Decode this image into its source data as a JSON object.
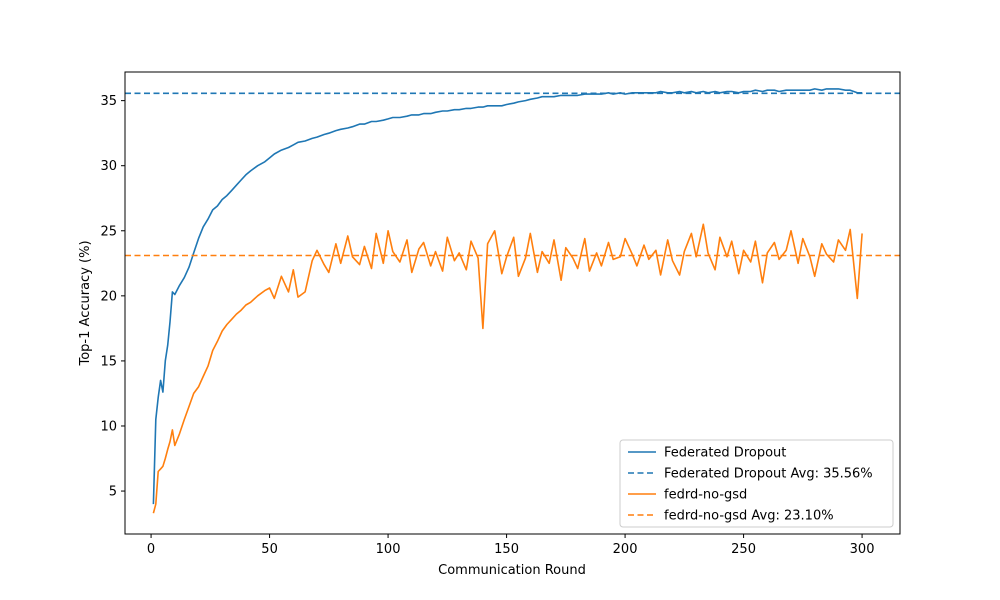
{
  "chart_data": {
    "type": "line",
    "title": "",
    "xlabel": "Communication Round",
    "ylabel": "Top-1 Accuracy (%)",
    "xlim": [
      -11,
      316
    ],
    "ylim": [
      1.7,
      37.2
    ],
    "xticks": [
      0,
      50,
      100,
      150,
      200,
      250,
      300
    ],
    "yticks": [
      5,
      10,
      15,
      20,
      25,
      30,
      35
    ],
    "grid": false,
    "legend_position": "lower-right",
    "x": [
      1,
      2,
      3,
      4,
      5,
      6,
      7,
      8,
      9,
      10,
      12,
      14,
      16,
      18,
      20,
      22,
      24,
      26,
      28,
      30,
      32,
      34,
      36,
      38,
      40,
      42,
      45,
      48,
      50,
      52,
      55,
      58,
      60,
      62,
      65,
      68,
      70,
      73,
      75,
      78,
      80,
      83,
      85,
      88,
      90,
      93,
      95,
      98,
      100,
      102,
      105,
      108,
      110,
      113,
      115,
      118,
      120,
      123,
      125,
      128,
      130,
      133,
      135,
      138,
      140,
      142,
      145,
      148,
      150,
      153,
      155,
      158,
      160,
      163,
      165,
      168,
      170,
      173,
      175,
      178,
      180,
      183,
      185,
      188,
      190,
      193,
      195,
      198,
      200,
      203,
      205,
      208,
      210,
      213,
      215,
      218,
      220,
      223,
      225,
      228,
      230,
      233,
      235,
      238,
      240,
      243,
      245,
      248,
      250,
      253,
      255,
      258,
      260,
      263,
      265,
      268,
      270,
      273,
      275,
      278,
      280,
      283,
      285,
      288,
      290,
      293,
      295,
      298,
      300
    ],
    "series": [
      {
        "name": "Federated Dropout",
        "color": "#1f77b4",
        "dashed": false,
        "values": [
          4.0,
          10.5,
          12.2,
          13.5,
          12.6,
          15.0,
          16.2,
          18.0,
          20.3,
          20.1,
          20.8,
          21.4,
          22.2,
          23.3,
          24.4,
          25.3,
          25.9,
          26.6,
          26.9,
          27.4,
          27.7,
          28.1,
          28.5,
          28.9,
          29.3,
          29.6,
          30.0,
          30.3,
          30.6,
          30.9,
          31.2,
          31.4,
          31.6,
          31.8,
          31.9,
          32.1,
          32.2,
          32.4,
          32.5,
          32.7,
          32.8,
          32.9,
          33.0,
          33.2,
          33.2,
          33.4,
          33.4,
          33.5,
          33.6,
          33.7,
          33.7,
          33.8,
          33.9,
          33.9,
          34.0,
          34.0,
          34.1,
          34.2,
          34.2,
          34.3,
          34.3,
          34.4,
          34.4,
          34.5,
          34.5,
          34.6,
          34.6,
          34.6,
          34.7,
          34.8,
          34.9,
          35.0,
          35.1,
          35.2,
          35.3,
          35.3,
          35.3,
          35.4,
          35.4,
          35.4,
          35.4,
          35.5,
          35.5,
          35.5,
          35.5,
          35.6,
          35.5,
          35.6,
          35.5,
          35.6,
          35.6,
          35.6,
          35.6,
          35.6,
          35.7,
          35.6,
          35.6,
          35.7,
          35.6,
          35.7,
          35.6,
          35.7,
          35.6,
          35.7,
          35.6,
          35.7,
          35.7,
          35.6,
          35.7,
          35.7,
          35.8,
          35.7,
          35.8,
          35.8,
          35.7,
          35.8,
          35.8,
          35.8,
          35.8,
          35.8,
          35.9,
          35.8,
          35.9,
          35.9,
          35.9,
          35.8,
          35.8,
          35.6,
          35.6
        ]
      },
      {
        "name": "Federated Dropout Avg: 35.56%",
        "color": "#1f77b4",
        "dashed": true,
        "constant": 35.56
      },
      {
        "name": "fedrd-no-gsd",
        "color": "#ff7f0e",
        "dashed": false,
        "values": [
          3.3,
          4.0,
          6.5,
          6.7,
          6.9,
          7.5,
          8.2,
          8.8,
          9.7,
          8.5,
          9.4,
          10.5,
          11.5,
          12.5,
          13.0,
          13.8,
          14.6,
          15.8,
          16.5,
          17.3,
          17.8,
          18.2,
          18.6,
          18.9,
          19.3,
          19.5,
          20.0,
          20.4,
          20.6,
          19.8,
          21.5,
          20.3,
          22.0,
          19.9,
          20.3,
          22.7,
          23.5,
          22.4,
          21.8,
          24.0,
          22.5,
          24.6,
          23.0,
          22.4,
          23.8,
          22.1,
          24.8,
          22.5,
          25.0,
          23.4,
          22.6,
          24.3,
          21.8,
          23.6,
          24.1,
          22.3,
          23.4,
          21.9,
          24.5,
          22.7,
          23.3,
          22.0,
          24.2,
          22.9,
          17.5,
          24.0,
          25.0,
          21.7,
          23.0,
          24.5,
          21.5,
          22.9,
          24.8,
          21.8,
          23.4,
          22.5,
          24.3,
          21.2,
          23.7,
          22.9,
          22.1,
          24.4,
          21.9,
          23.3,
          22.3,
          24.1,
          22.8,
          23.0,
          24.4,
          23.2,
          22.3,
          23.9,
          22.8,
          23.5,
          21.6,
          24.3,
          22.7,
          21.6,
          23.4,
          24.8,
          23.0,
          25.5,
          23.3,
          22.0,
          24.5,
          23.0,
          24.2,
          21.7,
          23.5,
          22.6,
          24.2,
          21.0,
          23.3,
          24.1,
          22.8,
          23.5,
          25.0,
          22.5,
          24.4,
          23.0,
          21.5,
          24.0,
          23.2,
          22.6,
          24.3,
          23.5,
          25.1,
          19.8,
          24.8
        ]
      },
      {
        "name": "fedrd-no-gsd Avg: 23.10%",
        "color": "#ff7f0e",
        "dashed": true,
        "constant": 23.1
      }
    ]
  }
}
